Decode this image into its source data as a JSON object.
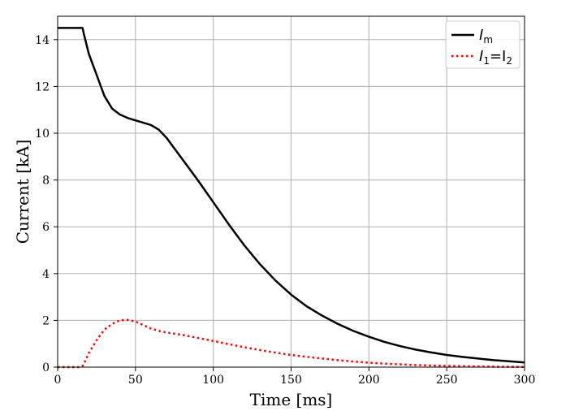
{
  "chart_data": {
    "type": "line",
    "title": "",
    "xlabel": "Time [ms]",
    "ylabel": "Current [kA]",
    "xlim": [
      0,
      300
    ],
    "ylim": [
      0,
      15
    ],
    "xticks": [
      0,
      50,
      100,
      150,
      200,
      250,
      300
    ],
    "yticks": [
      0,
      2,
      4,
      6,
      8,
      10,
      12,
      14
    ],
    "grid": true,
    "legend_position": "top-right",
    "series": [
      {
        "name": "I_m",
        "legend_main": "I",
        "legend_sub": "m",
        "legend_rest": "",
        "legend_sub2": "",
        "color": "#000000",
        "style": "solid",
        "x": [
          0,
          16,
          17,
          20,
          25,
          30,
          35,
          40,
          45,
          50,
          55,
          60,
          65,
          70,
          75,
          80,
          90,
          100,
          110,
          120,
          130,
          140,
          150,
          160,
          170,
          180,
          190,
          200,
          210,
          220,
          230,
          240,
          250,
          260,
          270,
          280,
          290,
          300
        ],
        "y": [
          14.5,
          14.5,
          14.2,
          13.4,
          12.5,
          11.6,
          11.05,
          10.8,
          10.65,
          10.55,
          10.45,
          10.35,
          10.15,
          9.8,
          9.35,
          8.9,
          8.0,
          7.05,
          6.1,
          5.2,
          4.4,
          3.7,
          3.1,
          2.6,
          2.2,
          1.85,
          1.55,
          1.3,
          1.08,
          0.9,
          0.75,
          0.63,
          0.52,
          0.44,
          0.37,
          0.3,
          0.25,
          0.2
        ]
      },
      {
        "name": "I_1=I_2",
        "legend_main": "I",
        "legend_sub": "1",
        "legend_rest": "=I",
        "legend_sub2": "2",
        "color": "#ff0000",
        "style": "dotted",
        "x": [
          0,
          14,
          16,
          18,
          20,
          25,
          30,
          35,
          40,
          45,
          50,
          55,
          60,
          65,
          70,
          80,
          90,
          100,
          110,
          120,
          130,
          140,
          150,
          160,
          170,
          180,
          190,
          200,
          210,
          220,
          230,
          240,
          250,
          260,
          270,
          280,
          290,
          300
        ],
        "y": [
          0,
          0,
          0.05,
          0.3,
          0.6,
          1.15,
          1.6,
          1.85,
          2.0,
          2.02,
          1.95,
          1.8,
          1.65,
          1.55,
          1.48,
          1.38,
          1.25,
          1.12,
          0.98,
          0.85,
          0.73,
          0.62,
          0.52,
          0.44,
          0.37,
          0.3,
          0.24,
          0.19,
          0.15,
          0.12,
          0.09,
          0.07,
          0.055,
          0.04,
          0.03,
          0.02,
          0.015,
          0.01
        ]
      }
    ]
  }
}
